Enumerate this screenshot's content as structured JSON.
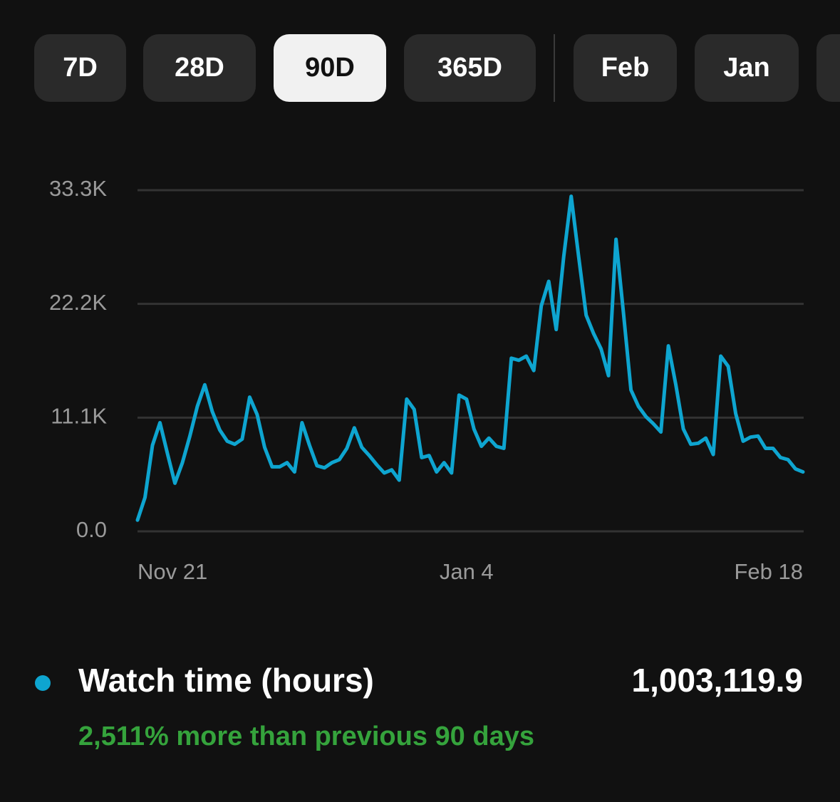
{
  "tabs": [
    "7D",
    "28D",
    "90D",
    "365D",
    "Feb",
    "Jan"
  ],
  "selected_tab": 2,
  "chart_data": {
    "type": "line",
    "categories": [
      "Nov 21",
      null,
      null,
      null,
      null,
      null,
      null,
      null,
      null,
      null,
      null,
      null,
      null,
      null,
      null,
      null,
      null,
      null,
      null,
      null,
      null,
      null,
      null,
      null,
      null,
      null,
      null,
      null,
      null,
      null,
      null,
      null,
      null,
      null,
      null,
      null,
      null,
      null,
      null,
      null,
      null,
      null,
      null,
      null,
      "Jan 4",
      null,
      null,
      null,
      null,
      null,
      null,
      null,
      null,
      null,
      null,
      null,
      null,
      null,
      null,
      null,
      null,
      null,
      null,
      null,
      null,
      null,
      null,
      null,
      null,
      null,
      null,
      null,
      null,
      null,
      null,
      null,
      null,
      null,
      null,
      null,
      null,
      null,
      null,
      null,
      null,
      null,
      null,
      null,
      null,
      "Feb 18"
    ],
    "series": [
      {
        "name": "Watch time (hours)",
        "color": "#0ea5d0",
        "values": [
          1100,
          3300,
          8400,
          10600,
          7600,
          4700,
          6700,
          9300,
          12200,
          14300,
          11700,
          9900,
          8800,
          8500,
          9000,
          13100,
          11400,
          8200,
          6300,
          6300,
          6700,
          5800,
          10600,
          8400,
          6400,
          6200,
          6700,
          7000,
          8100,
          10100,
          8200,
          7400,
          6500,
          5700,
          6000,
          5000,
          12900,
          11900,
          7200,
          7400,
          5800,
          6700,
          5700,
          13300,
          12900,
          10000,
          8300,
          9100,
          8300,
          8100,
          16900,
          16700,
          17100,
          15700,
          22000,
          24400,
          19700,
          26800,
          32700,
          26800,
          21100,
          19300,
          17800,
          15200,
          28500,
          21300,
          13800,
          12200,
          11200,
          10500,
          9700,
          18100,
          14300,
          10000,
          8500,
          8600,
          9100,
          7500,
          17100,
          16100,
          11500,
          8800,
          9200,
          9300,
          8100,
          8100,
          7200,
          7000,
          6100,
          5800
        ]
      }
    ],
    "ylim": [
      0,
      33300
    ],
    "yticks": [
      {
        "value": 0,
        "label": "0.0"
      },
      {
        "value": 11100,
        "label": "11.1K"
      },
      {
        "value": 22200,
        "label": "22.2K"
      },
      {
        "value": 33300,
        "label": "33.3K"
      }
    ],
    "grid": true
  },
  "summary": {
    "total": "1,003,119.9",
    "comparison": "2,511% more than previous 90 days"
  }
}
